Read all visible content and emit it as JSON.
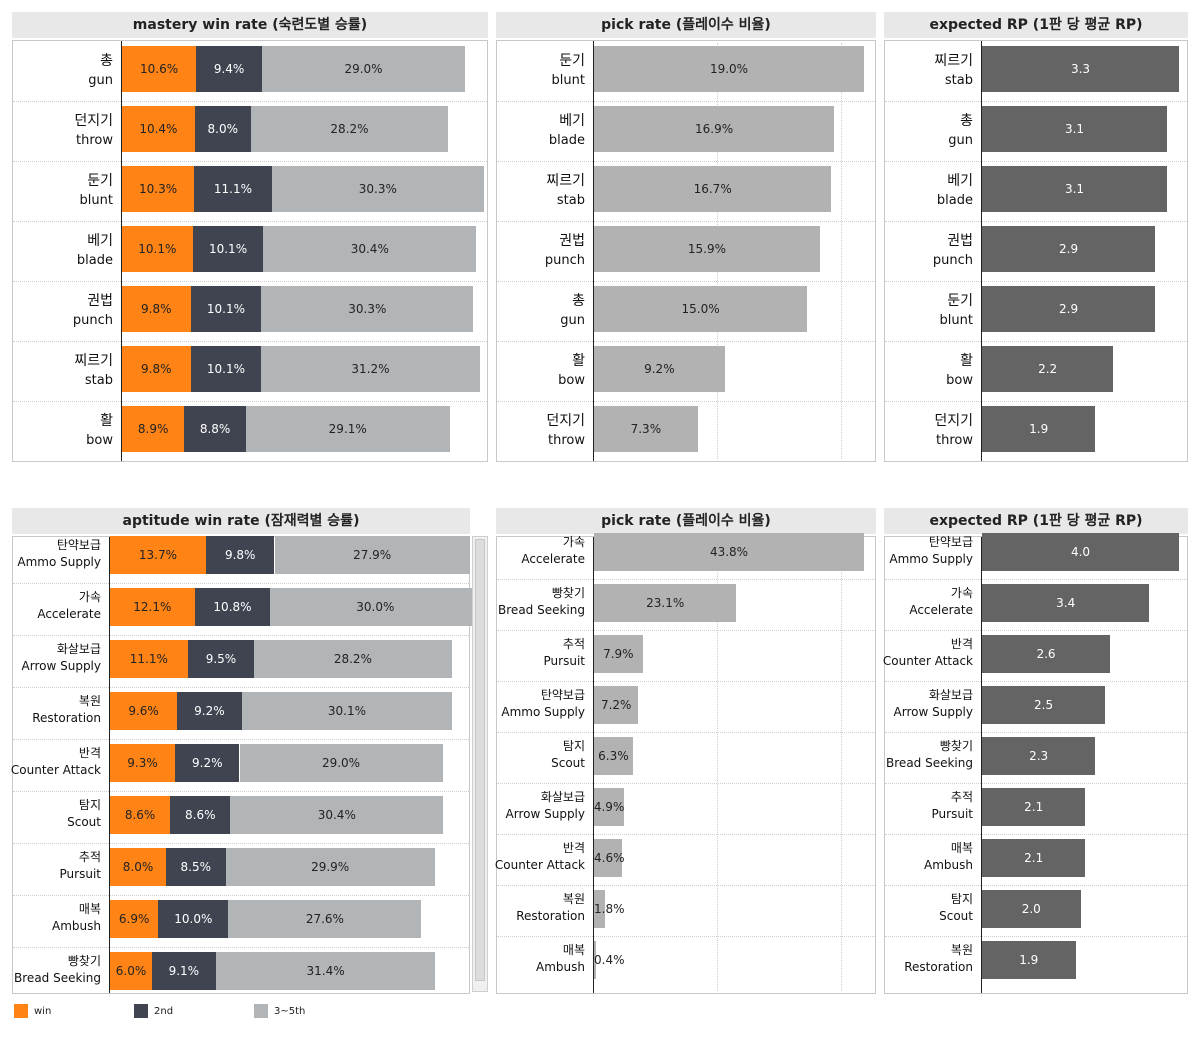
{
  "panels": [
    {
      "id": "mastery-win",
      "title": "mastery win rate (숙련도별 승률)",
      "kind": "stacked",
      "rows": [
        {
          "kr": "총",
          "en": "gun",
          "win": "10.6%",
          "second": "9.4%",
          "rest": "29.0%",
          "v": [
            10.6,
            9.4,
            29.0
          ]
        },
        {
          "kr": "던지기",
          "en": "throw",
          "win": "10.4%",
          "second": "8.0%",
          "rest": "28.2%",
          "v": [
            10.4,
            8.0,
            28.2
          ]
        },
        {
          "kr": "둔기",
          "en": "blunt",
          "win": "10.3%",
          "second": "11.1%",
          "rest": "30.3%",
          "v": [
            10.3,
            11.1,
            30.3
          ]
        },
        {
          "kr": "베기",
          "en": "blade",
          "win": "10.1%",
          "second": "10.1%",
          "rest": "30.4%",
          "v": [
            10.1,
            10.1,
            30.4
          ]
        },
        {
          "kr": "권법",
          "en": "punch",
          "win": "9.8%",
          "second": "10.1%",
          "rest": "30.3%",
          "v": [
            9.8,
            10.1,
            30.3
          ]
        },
        {
          "kr": "찌르기",
          "en": "stab",
          "win": "9.8%",
          "second": "10.1%",
          "rest": "31.2%",
          "v": [
            9.8,
            10.1,
            31.2
          ]
        },
        {
          "kr": "활",
          "en": "bow",
          "win": "8.9%",
          "second": "8.8%",
          "rest": "29.1%",
          "v": [
            8.9,
            8.8,
            29.1
          ]
        }
      ]
    },
    {
      "id": "mastery-pick",
      "title": "pick rate (플레이수 비율)",
      "kind": "pick",
      "rows": [
        {
          "kr": "둔기",
          "en": "blunt",
          "label": "19.0%",
          "v": 19.0
        },
        {
          "kr": "베기",
          "en": "blade",
          "label": "16.9%",
          "v": 16.9
        },
        {
          "kr": "찌르기",
          "en": "stab",
          "label": "16.7%",
          "v": 16.7
        },
        {
          "kr": "권법",
          "en": "punch",
          "label": "15.9%",
          "v": 15.9
        },
        {
          "kr": "총",
          "en": "gun",
          "label": "15.0%",
          "v": 15.0
        },
        {
          "kr": "활",
          "en": "bow",
          "label": "9.2%",
          "v": 9.2
        },
        {
          "kr": "던지기",
          "en": "throw",
          "label": "7.3%",
          "v": 7.3
        }
      ]
    },
    {
      "id": "mastery-rp",
      "title": "expected RP (1판 당 평균 RP)",
      "kind": "rp",
      "rows": [
        {
          "kr": "찌르기",
          "en": "stab",
          "label": "3.3",
          "v": 3.3
        },
        {
          "kr": "총",
          "en": "gun",
          "label": "3.1",
          "v": 3.1
        },
        {
          "kr": "베기",
          "en": "blade",
          "label": "3.1",
          "v": 3.1
        },
        {
          "kr": "권법",
          "en": "punch",
          "label": "2.9",
          "v": 2.9
        },
        {
          "kr": "둔기",
          "en": "blunt",
          "label": "2.9",
          "v": 2.9
        },
        {
          "kr": "활",
          "en": "bow",
          "label": "2.2",
          "v": 2.2
        },
        {
          "kr": "던지기",
          "en": "throw",
          "label": "1.9",
          "v": 1.9
        }
      ]
    },
    {
      "id": "aptitude-win",
      "title": "aptitude win rate (잠재력별 승률)",
      "kind": "stacked",
      "rows": [
        {
          "kr": "탄약보급",
          "en": "Ammo Supply",
          "win": "13.7%",
          "second": "9.8%",
          "rest": "27.9%",
          "v": [
            13.7,
            9.8,
            27.9
          ]
        },
        {
          "kr": "가속",
          "en": "Accelerate",
          "win": "12.1%",
          "second": "10.8%",
          "rest": "30.0%",
          "v": [
            12.1,
            10.8,
            30.0
          ]
        },
        {
          "kr": "화살보급",
          "en": "Arrow Supply",
          "win": "11.1%",
          "second": "9.5%",
          "rest": "28.2%",
          "v": [
            11.1,
            9.5,
            28.2
          ]
        },
        {
          "kr": "복원",
          "en": "Restoration",
          "win": "9.6%",
          "second": "9.2%",
          "rest": "30.1%",
          "v": [
            9.6,
            9.2,
            30.1
          ]
        },
        {
          "kr": "반격",
          "en": "Counter Attack",
          "win": "9.3%",
          "second": "9.2%",
          "rest": "29.0%",
          "v": [
            9.3,
            9.2,
            29.0
          ]
        },
        {
          "kr": "탐지",
          "en": "Scout",
          "win": "8.6%",
          "second": "8.6%",
          "rest": "30.4%",
          "v": [
            8.6,
            8.6,
            30.4
          ]
        },
        {
          "kr": "추적",
          "en": "Pursuit",
          "win": "8.0%",
          "second": "8.5%",
          "rest": "29.9%",
          "v": [
            8.0,
            8.5,
            29.9
          ]
        },
        {
          "kr": "매복",
          "en": "Ambush",
          "win": "6.9%",
          "second": "10.0%",
          "rest": "27.6%",
          "v": [
            6.9,
            10.0,
            27.6
          ]
        },
        {
          "kr": "빵찾기",
          "en": "Bread Seeking",
          "win": "6.0%",
          "second": "9.1%",
          "rest": "31.4%",
          "v": [
            6.0,
            9.1,
            31.4
          ]
        }
      ]
    },
    {
      "id": "aptitude-pick",
      "title": "pick rate (플레이수 비율)",
      "kind": "pick",
      "rows": [
        {
          "kr": "가속",
          "en": "Accelerate",
          "label": "43.8%",
          "v": 43.8
        },
        {
          "kr": "빵찾기",
          "en": "Bread Seeking",
          "label": "23.1%",
          "v": 23.1
        },
        {
          "kr": "추적",
          "en": "Pursuit",
          "label": "7.9%",
          "v": 7.9
        },
        {
          "kr": "탄약보급",
          "en": "Ammo Supply",
          "label": "7.2%",
          "v": 7.2
        },
        {
          "kr": "탐지",
          "en": "Scout",
          "label": "6.3%",
          "v": 6.3
        },
        {
          "kr": "화살보급",
          "en": "Arrow Supply",
          "label": "4.9%",
          "v": 4.9
        },
        {
          "kr": "반격",
          "en": "Counter Attack",
          "label": "4.6%",
          "v": 4.6
        },
        {
          "kr": "복원",
          "en": "Restoration",
          "label": "1.8%",
          "v": 1.8
        },
        {
          "kr": "매복",
          "en": "Ambush",
          "label": "0.4%",
          "v": 0.4
        }
      ]
    },
    {
      "id": "aptitude-rp",
      "title": "expected RP (1판 당 평균 RP)",
      "kind": "rp",
      "rows": [
        {
          "kr": "탄약보급",
          "en": "Ammo Supply",
          "label": "4.0",
          "v": 4.0
        },
        {
          "kr": "가속",
          "en": "Accelerate",
          "label": "3.4",
          "v": 3.4
        },
        {
          "kr": "반격",
          "en": "Counter Attack",
          "label": "2.6",
          "v": 2.6
        },
        {
          "kr": "화살보급",
          "en": "Arrow Supply",
          "label": "2.5",
          "v": 2.5
        },
        {
          "kr": "빵찾기",
          "en": "Bread Seeking",
          "label": "2.3",
          "v": 2.3
        },
        {
          "kr": "추적",
          "en": "Pursuit",
          "label": "2.1",
          "v": 2.1
        },
        {
          "kr": "매복",
          "en": "Ambush",
          "label": "2.1",
          "v": 2.1
        },
        {
          "kr": "탐지",
          "en": "Scout",
          "label": "2.0",
          "v": 2.0
        },
        {
          "kr": "복원",
          "en": "Restoration",
          "label": "1.9",
          "v": 1.9
        }
      ]
    }
  ],
  "legend": [
    {
      "label": "win",
      "color": "#ff8415"
    },
    {
      "label": "2nd",
      "color": "#3f4450"
    },
    {
      "label": "3~5th",
      "color": "#b2b5b8"
    }
  ],
  "chart_data": [
    {
      "type": "bar",
      "title": "mastery win rate (숙련도별 승률)",
      "categories": [
        "총 gun",
        "던지기 throw",
        "둔기 blunt",
        "베기 blade",
        "권법 punch",
        "찌르기 stab",
        "활 bow"
      ],
      "series": [
        {
          "name": "win",
          "values": [
            10.6,
            10.4,
            10.3,
            10.1,
            9.8,
            9.8,
            8.9
          ]
        },
        {
          "name": "2nd",
          "values": [
            9.4,
            8.0,
            11.1,
            10.1,
            10.1,
            10.1,
            8.8
          ]
        },
        {
          "name": "3~5th",
          "values": [
            29.0,
            28.2,
            30.3,
            30.4,
            30.3,
            31.2,
            29.1
          ]
        }
      ]
    },
    {
      "type": "bar",
      "title": "pick rate (플레이수 비율)",
      "categories": [
        "둔기 blunt",
        "베기 blade",
        "찌르기 stab",
        "권법 punch",
        "총 gun",
        "활 bow",
        "던지기 throw"
      ],
      "values": [
        19.0,
        16.9,
        16.7,
        15.9,
        15.0,
        9.2,
        7.3
      ]
    },
    {
      "type": "bar",
      "title": "expected RP (1판 당 평균 RP)",
      "categories": [
        "찌르기 stab",
        "총 gun",
        "베기 blade",
        "권법 punch",
        "둔기 blunt",
        "활 bow",
        "던지기 throw"
      ],
      "values": [
        3.3,
        3.1,
        3.1,
        2.9,
        2.9,
        2.2,
        1.9
      ]
    },
    {
      "type": "bar",
      "title": "aptitude win rate (잠재력별 승률)",
      "categories": [
        "탄약보급 Ammo Supply",
        "가속 Accelerate",
        "화살보급 Arrow Supply",
        "복원 Restoration",
        "반격 Counter Attack",
        "탐지 Scout",
        "추적 Pursuit",
        "매복 Ambush",
        "빵찾기 Bread Seeking"
      ],
      "series": [
        {
          "name": "win",
          "values": [
            13.7,
            12.1,
            11.1,
            9.6,
            9.3,
            8.6,
            8.0,
            6.9,
            6.0
          ]
        },
        {
          "name": "2nd",
          "values": [
            9.8,
            10.8,
            9.5,
            9.2,
            9.2,
            8.6,
            8.5,
            10.0,
            9.1
          ]
        },
        {
          "name": "3~5th",
          "values": [
            27.9,
            30.0,
            28.2,
            30.1,
            29.0,
            30.4,
            29.9,
            27.6,
            31.4
          ]
        }
      ]
    },
    {
      "type": "bar",
      "title": "pick rate (플레이수 비율)",
      "categories": [
        "가속 Accelerate",
        "빵찾기 Bread Seeking",
        "추적 Pursuit",
        "탄약보급 Ammo Supply",
        "탐지 Scout",
        "화살보급 Arrow Supply",
        "반격 Counter Attack",
        "복원 Restoration",
        "매복 Ambush"
      ],
      "values": [
        43.8,
        23.1,
        7.9,
        7.2,
        6.3,
        4.9,
        4.6,
        1.8,
        0.4
      ]
    },
    {
      "type": "bar",
      "title": "expected RP (1판 당 평균 RP)",
      "categories": [
        "탄약보급 Ammo Supply",
        "가속 Accelerate",
        "반격 Counter Attack",
        "화살보급 Arrow Supply",
        "빵찾기 Bread Seeking",
        "추적 Pursuit",
        "매복 Ambush",
        "탐지 Scout",
        "복원 Restoration"
      ],
      "values": [
        4.0,
        3.4,
        2.6,
        2.5,
        2.3,
        2.1,
        2.1,
        2.0,
        1.9
      ]
    }
  ]
}
